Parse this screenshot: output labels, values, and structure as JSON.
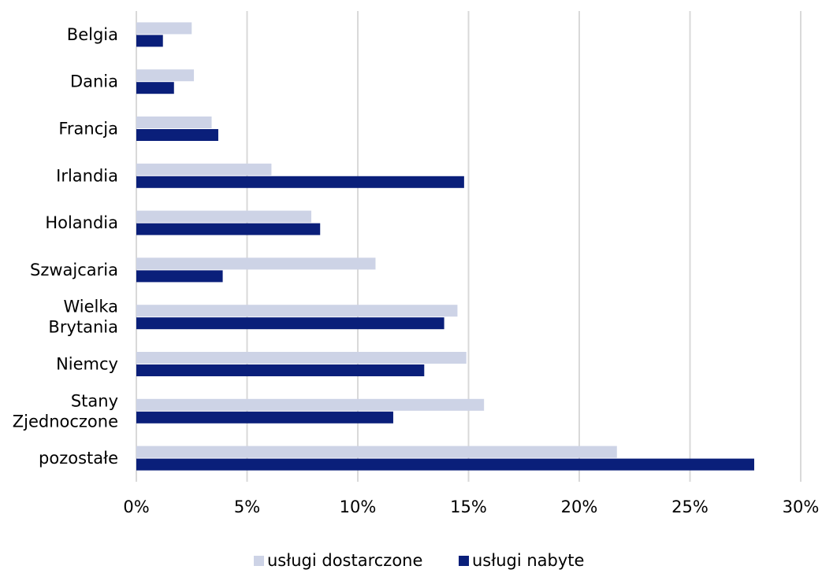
{
  "chart_data": {
    "type": "bar",
    "orientation": "horizontal",
    "categories": [
      [
        "Belgia"
      ],
      [
        "Dania"
      ],
      [
        "Francja"
      ],
      [
        "Irlandia"
      ],
      [
        "Holandia"
      ],
      [
        "Szwajcaria"
      ],
      [
        "Wielka",
        "Brytania"
      ],
      [
        "Niemcy"
      ],
      [
        "Stany",
        "Zjednoczone"
      ],
      [
        "pozostałe"
      ]
    ],
    "series": [
      {
        "name": "usługi dostarczone",
        "color": "#cdd3e6",
        "values": [
          2.5,
          2.6,
          3.4,
          6.1,
          7.9,
          10.8,
          14.5,
          14.9,
          15.7,
          21.7
        ]
      },
      {
        "name": "usługi nabyte",
        "color": "#0a1f7a",
        "values": [
          1.2,
          1.7,
          3.7,
          14.8,
          8.3,
          3.9,
          13.9,
          13.0,
          11.6,
          27.9
        ]
      }
    ],
    "xlim": [
      0,
      30
    ],
    "xticks": [
      0,
      5,
      10,
      15,
      20,
      25,
      30
    ],
    "xtick_labels": [
      "0%",
      "5%",
      "10%",
      "15%",
      "20%",
      "25%",
      "30%"
    ],
    "gridlines": "vertical",
    "legend_position": "bottom",
    "title": "",
    "xlabel": "",
    "ylabel": ""
  }
}
